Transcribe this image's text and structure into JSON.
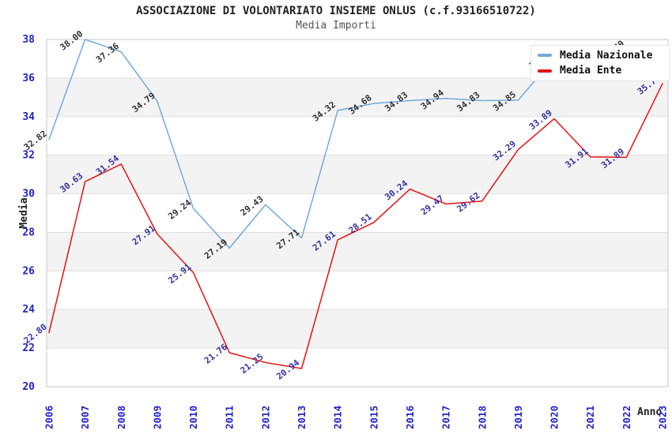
{
  "chart": {
    "title": "ASSOCIAZIONE DI VOLONTARIATO INSIEME ONLUS (c.f.93166510722)",
    "subtitle": "Media Importi",
    "xlabel": "Anno",
    "ylabel": "Media",
    "tick_color": "#2222cc",
    "band_color": "#f3f3f3",
    "gridline_color": "#e0e0e0",
    "border_color": "#c8c8c8"
  },
  "chart_data": {
    "type": "line",
    "categories": [
      "2006",
      "2007",
      "2008",
      "2009",
      "2010",
      "2011",
      "2012",
      "2013",
      "2014",
      "2015",
      "2016",
      "2017",
      "2018",
      "2019",
      "2020",
      "2021",
      "2022",
      "2023"
    ],
    "series": [
      {
        "name": "Media Nazionale",
        "color": "#73aade",
        "label_color": "#333333",
        "values": [
          32.82,
          38.0,
          37.36,
          34.79,
          29.24,
          27.19,
          29.43,
          27.71,
          34.32,
          34.68,
          34.83,
          34.94,
          34.83,
          34.85,
          37.05,
          null,
          37.49,
          null
        ]
      },
      {
        "name": "Media Ente",
        "color": "#e81111",
        "label_color": "#3333a0",
        "values": [
          22.8,
          30.63,
          31.54,
          27.91,
          25.91,
          21.76,
          21.25,
          20.94,
          27.61,
          28.51,
          30.24,
          29.47,
          29.62,
          32.29,
          33.89,
          31.91,
          31.89,
          35.71
        ]
      }
    ],
    "ylim": [
      20,
      38
    ],
    "ytick_step": 2,
    "grid": "horizontal-bands-alternating",
    "legend_position": "top-right",
    "note": "Media Nazionale data labels for 2021 and 2023 are hidden behind the legend box"
  }
}
